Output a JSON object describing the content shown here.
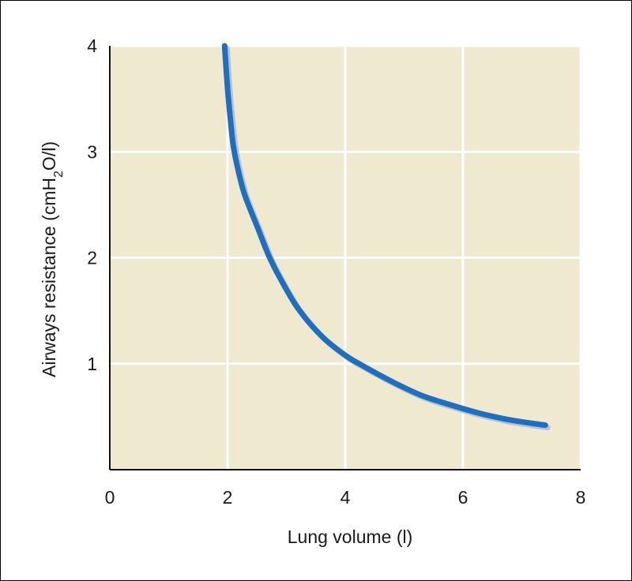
{
  "chart_data": {
    "type": "line",
    "title": "",
    "xlabel": "Lung volume (l)",
    "ylabel": {
      "main": "Airways resistance (cmH",
      "subscript": "2",
      "tail": "O/l)"
    },
    "xlim": [
      0,
      8
    ],
    "ylim": [
      0,
      4
    ],
    "x_ticks": [
      0,
      2,
      4,
      6,
      8
    ],
    "y_ticks": [
      1,
      2,
      3,
      4
    ],
    "x_tick_labels": [
      "0",
      "2",
      "4",
      "6",
      "8"
    ],
    "y_tick_labels": [
      "1",
      "2",
      "3",
      "4"
    ],
    "grid": true,
    "colors": {
      "plot_background": "#efe9cf",
      "grid": "#ffffff",
      "line": "#1f6fc0",
      "line_shadow": "#b9c2cc"
    },
    "series": [
      {
        "x": [
          1.95,
          2.0,
          2.05,
          2.1,
          2.2,
          2.3,
          2.5,
          2.7,
          2.9,
          3.2,
          3.6,
          4.0,
          4.3,
          4.8,
          5.3,
          5.8,
          6.3,
          6.8,
          7.4
        ],
        "y": [
          4.0,
          3.6,
          3.3,
          3.05,
          2.78,
          2.58,
          2.3,
          2.02,
          1.8,
          1.52,
          1.26,
          1.08,
          0.98,
          0.83,
          0.7,
          0.61,
          0.53,
          0.47,
          0.42
        ]
      }
    ]
  }
}
